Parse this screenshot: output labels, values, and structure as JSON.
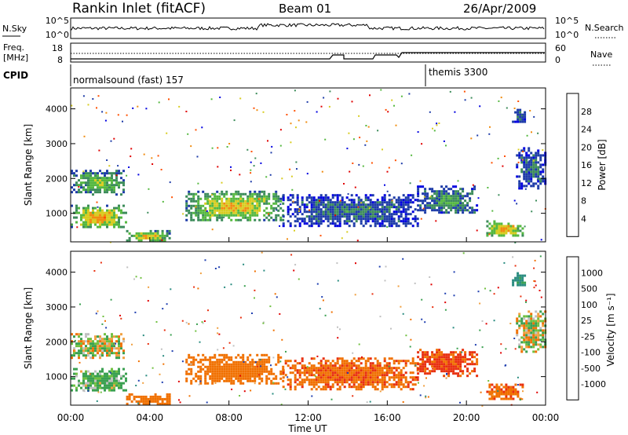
{
  "header": {
    "station": "Rankin Inlet (fitACF)",
    "beam": "Beam 01",
    "date": "26/Apr/2009"
  },
  "noise_panel": {
    "left_label": "N.Sky",
    "right_label": "N.Search",
    "left_ticks": [
      "10^5",
      "10^0"
    ],
    "right_ticks": [
      "10^5",
      "10^0"
    ]
  },
  "freq_panel": {
    "left_label_1": "Freq.",
    "left_label_2": "[MHz]",
    "right_label": "Nave",
    "left_ticks": [
      "18",
      "8"
    ],
    "right_ticks": [
      "60",
      "0"
    ]
  },
  "cpid": {
    "label": "CPID",
    "program_1": "normalsound (fast) 157",
    "program_2": "themis 3300"
  },
  "chart_data": [
    {
      "type": "heatmap",
      "title": "",
      "xlabel": "Time UT",
      "ylabel": "Slant Range [km]",
      "x_ticks": [
        "00:00",
        "04:00",
        "08:00",
        "12:00",
        "16:00",
        "20:00",
        "00:00"
      ],
      "y_ticks": [
        "1000",
        "2000",
        "3000",
        "4000"
      ],
      "xlim_hours": [
        0,
        24
      ],
      "ylim_km": [
        180,
        4600
      ],
      "colorbar": {
        "label": "Power [dB]",
        "ticks": [
          "4",
          "8",
          "12",
          "16",
          "20",
          "24",
          "28"
        ],
        "colors": [
          "#0000e0",
          "#1e3ca8",
          "#3c8c5a",
          "#55b840",
          "#d8cc20",
          "#f08c10",
          "#ff5000",
          "#e00000"
        ]
      },
      "regions": [
        {
          "t0": 0.0,
          "t1": 2.7,
          "r0": 1550,
          "r1": 2250,
          "value": 14
        },
        {
          "t0": 0.0,
          "t1": 2.8,
          "r0": 580,
          "r1": 1250,
          "value": 20
        },
        {
          "t0": 2.8,
          "t1": 5.0,
          "r0": 200,
          "r1": 520,
          "value": 18
        },
        {
          "t0": 5.8,
          "t1": 10.7,
          "r0": 780,
          "r1": 1650,
          "value": 18
        },
        {
          "t0": 10.7,
          "t1": 17.5,
          "r0": 650,
          "r1": 1550,
          "value": 8
        },
        {
          "t0": 17.5,
          "t1": 20.5,
          "r0": 1000,
          "r1": 1800,
          "value": 10
        },
        {
          "t0": 21.0,
          "t1": 22.8,
          "r0": 350,
          "r1": 800,
          "value": 20
        },
        {
          "t0": 22.5,
          "t1": 24.0,
          "r0": 1700,
          "r1": 2900,
          "value": 8
        },
        {
          "t0": 22.3,
          "t1": 23.0,
          "r0": 3600,
          "r1": 4000,
          "value": 8
        }
      ]
    },
    {
      "type": "heatmap",
      "title": "",
      "xlabel": "Time UT",
      "ylabel": "Slant Range [km]",
      "x_ticks": [
        "00:00",
        "04:00",
        "08:00",
        "12:00",
        "16:00",
        "20:00",
        "00:00"
      ],
      "y_ticks": [
        "1000",
        "2000",
        "3000",
        "4000"
      ],
      "xlim_hours": [
        0,
        24
      ],
      "ylim_km": [
        180,
        4600
      ],
      "colorbar": {
        "label": "Velocity [m s⁻¹]",
        "ticks": [
          "1000",
          "500",
          "100",
          "25",
          "-25",
          "-100",
          "-500",
          "-1000"
        ],
        "colors": [
          "#2040b0",
          "#2a8c80",
          "#3aa050",
          "#70c040",
          "#c0c0c0",
          "#f0a040",
          "#f07000",
          "#e83010",
          "#e00000"
        ]
      },
      "regions": [
        {
          "t0": 0.0,
          "t1": 2.7,
          "r0": 1550,
          "r1": 2250,
          "value": 0
        },
        {
          "t0": 0.0,
          "t1": 2.8,
          "r0": 580,
          "r1": 1250,
          "value": 150
        },
        {
          "t0": 2.8,
          "t1": 5.0,
          "r0": 200,
          "r1": 520,
          "value": -300
        },
        {
          "t0": 5.8,
          "t1": 10.7,
          "r0": 780,
          "r1": 1650,
          "value": -300
        },
        {
          "t0": 10.7,
          "t1": 17.5,
          "r0": 650,
          "r1": 1550,
          "value": -400
        },
        {
          "t0": 17.5,
          "t1": 20.5,
          "r0": 1000,
          "r1": 1800,
          "value": -600
        },
        {
          "t0": 21.0,
          "t1": 22.8,
          "r0": 350,
          "r1": 800,
          "value": -400
        },
        {
          "t0": 22.5,
          "t1": 24.0,
          "r0": 1700,
          "r1": 2900,
          "value": 0
        },
        {
          "t0": 22.3,
          "t1": 23.0,
          "r0": 3600,
          "r1": 4000,
          "value": 600
        }
      ]
    }
  ]
}
